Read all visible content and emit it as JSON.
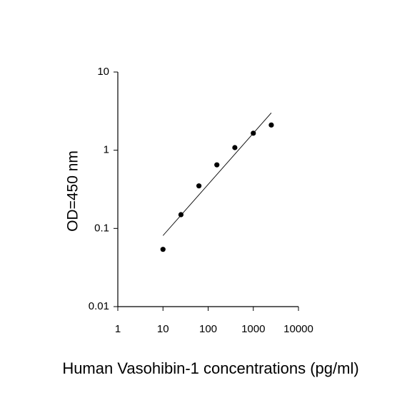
{
  "chart_data": {
    "type": "scatter",
    "xlabel": "Human Vasohibin-1 concentrations (pg/ml)",
    "ylabel": "OD=450 nm",
    "xscale": "log",
    "yscale": "log",
    "xlim": [
      1,
      10000
    ],
    "ylim": [
      0.01,
      10
    ],
    "xticks": [
      1,
      10,
      100,
      1000,
      10000
    ],
    "yticks": [
      0.01,
      0.1,
      1,
      10
    ],
    "series": [
      {
        "type": "scatter",
        "color": "#000000",
        "x": [
          10,
          25,
          62.5,
          156,
          390,
          1000,
          2500
        ],
        "values": [
          0.054,
          0.15,
          0.35,
          0.65,
          1.08,
          1.65,
          2.1
        ]
      },
      {
        "type": "line",
        "color": "#000000",
        "x": [
          10,
          2500
        ],
        "values": [
          0.081,
          3.0
        ]
      }
    ]
  }
}
